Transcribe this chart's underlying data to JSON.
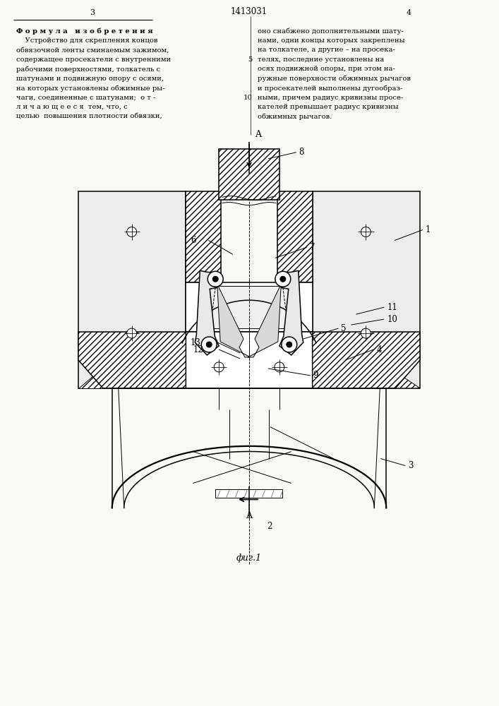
{
  "bg": "#f8f8f5",
  "page_num_left": "3",
  "page_num_center": "1413031",
  "page_num_right": "4",
  "fig_caption": "фиг.1"
}
